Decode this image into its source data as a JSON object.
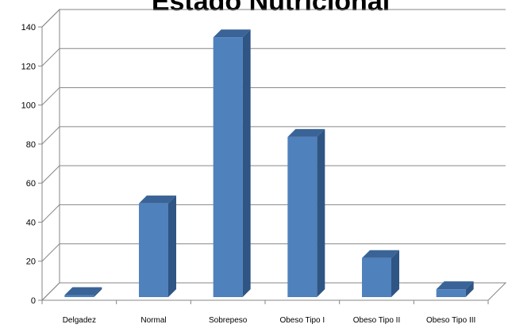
{
  "chart_data": {
    "type": "bar",
    "title": "Estado Nutricional",
    "categories": [
      "Delgadez",
      "Normal",
      "Sobrepeso",
      "Obeso Tipo I",
      "Obeso Tipo II",
      "Obeso Tipo III"
    ],
    "values": [
      1,
      48,
      133,
      82,
      20,
      4
    ],
    "xlabel": "",
    "ylabel": "",
    "ylim": [
      0,
      140
    ],
    "yticks": [
      0,
      20,
      40,
      60,
      80,
      100,
      120,
      140
    ],
    "grid": true,
    "legend": "none",
    "bar_color": "#4F81BD",
    "bar_side_color": "#2E5584",
    "bar_top_color": "#3A6497"
  }
}
